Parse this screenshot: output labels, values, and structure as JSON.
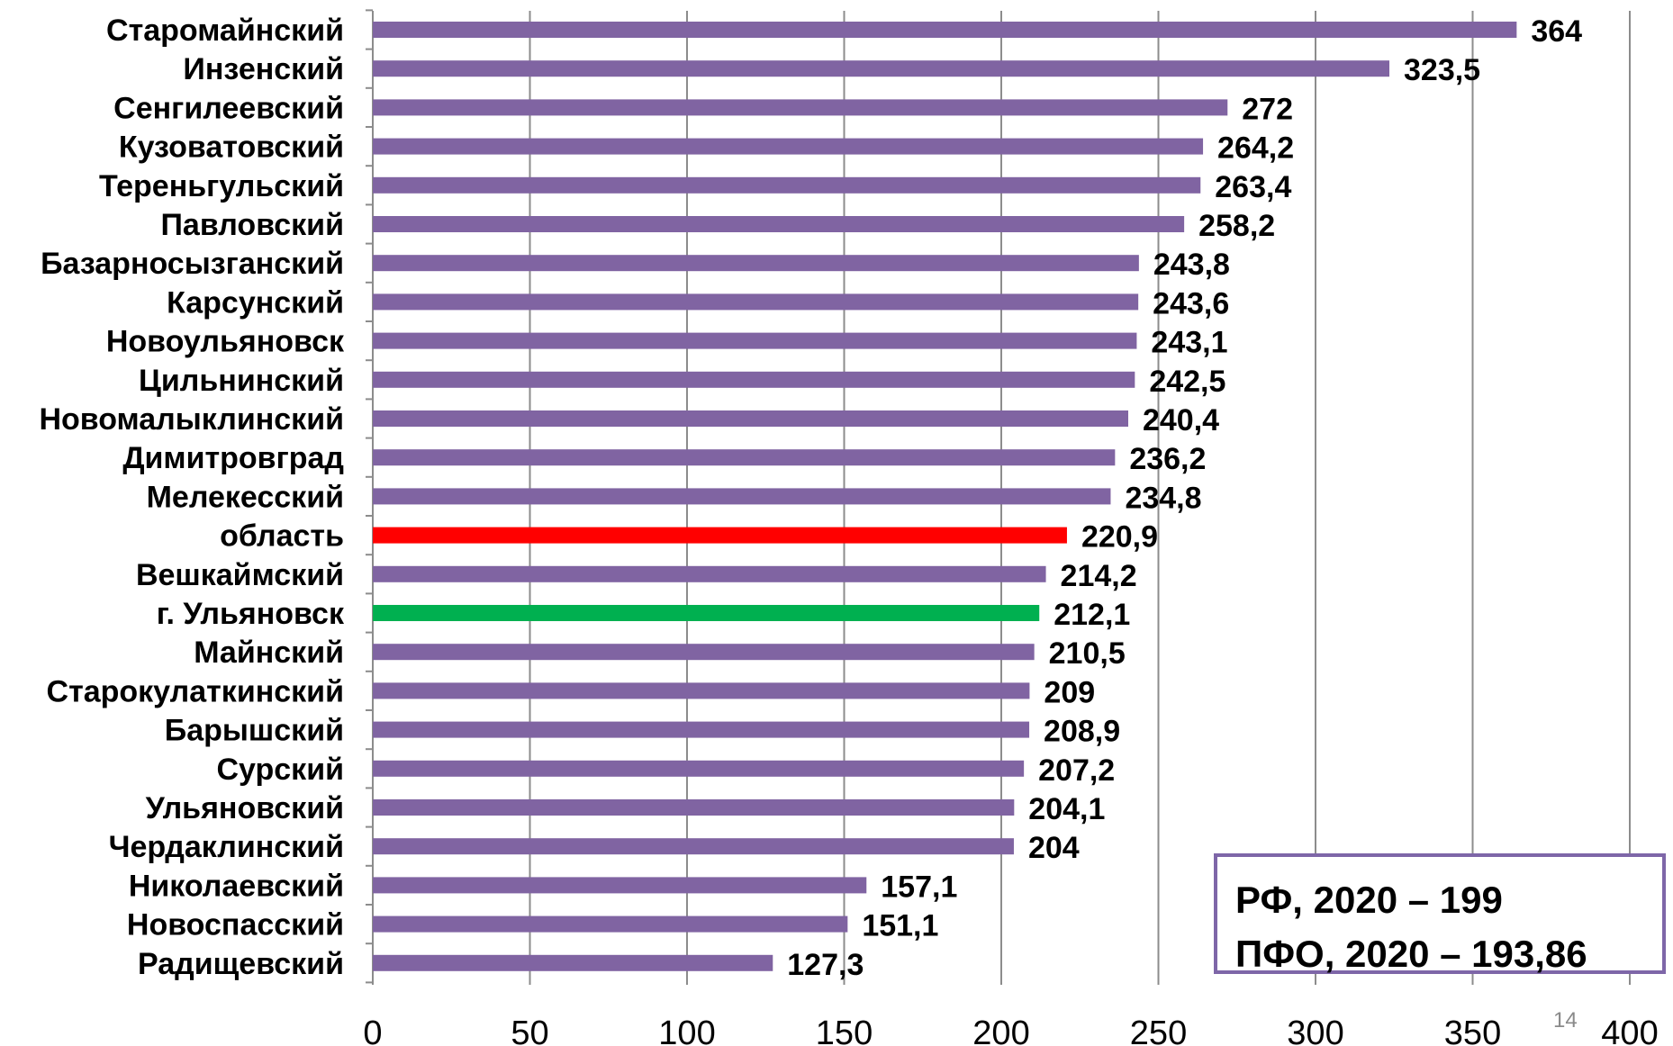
{
  "chart_data": {
    "type": "bar",
    "orientation": "horizontal",
    "categories": [
      "Старомайнский",
      "Инзенский",
      "Сенгилеевский",
      "Кузоватовский",
      "Тереньгульский",
      "Павловский",
      "Базарносызганский",
      "Карсунский",
      "Новоульяновск",
      "Цильнинский",
      "Новомалыклинский",
      "Димитровград",
      "Мелекесский",
      "область",
      "Вешкаймский",
      "г. Ульяновск",
      "Майнский",
      "Старокулаткинский",
      "Барышский",
      "Сурский",
      "Ульяновский",
      "Чердаклинский",
      "Николаевский",
      "Новоспасский",
      "Радищевский"
    ],
    "values": [
      364,
      323.5,
      272,
      264.2,
      263.4,
      258.2,
      243.8,
      243.6,
      243.1,
      242.5,
      240.4,
      236.2,
      234.8,
      220.9,
      214.2,
      212.1,
      210.5,
      209,
      208.9,
      207.2,
      204.1,
      204,
      157.1,
      151.1,
      127.3
    ],
    "value_labels": [
      "364",
      "323,5",
      "272",
      "264,2",
      "263,4",
      "258,2",
      "243,8",
      "243,6",
      "243,1",
      "242,5",
      "240,4",
      "236,2",
      "234,8",
      "220,9",
      "214,2",
      "212,1",
      "210,5",
      "209",
      "208,9",
      "207,2",
      "204,1",
      "204",
      "157,1",
      "151,1",
      "127,3"
    ],
    "bar_colors": [
      "#8064a2",
      "#8064a2",
      "#8064a2",
      "#8064a2",
      "#8064a2",
      "#8064a2",
      "#8064a2",
      "#8064a2",
      "#8064a2",
      "#8064a2",
      "#8064a2",
      "#8064a2",
      "#8064a2",
      "#ff0000",
      "#8064a2",
      "#00b050",
      "#8064a2",
      "#8064a2",
      "#8064a2",
      "#8064a2",
      "#8064a2",
      "#8064a2",
      "#8064a2",
      "#8064a2",
      "#8064a2"
    ],
    "xlim": [
      0,
      400
    ],
    "xticks": [
      0,
      50,
      100,
      150,
      200,
      250,
      300,
      350,
      400
    ],
    "grid": true,
    "title": "",
    "xlabel": "",
    "ylabel": ""
  },
  "annotation": {
    "line1": "РФ, 2020 – 199",
    "line2": "ПФО, 2020 – 193,86"
  },
  "page_number": "14",
  "colors": {
    "default_bar": "#8064a2",
    "highlight_region": "#ff0000",
    "highlight_city": "#00b050",
    "box_border": "#7e66a8",
    "gridline": "#8c8c8c"
  }
}
